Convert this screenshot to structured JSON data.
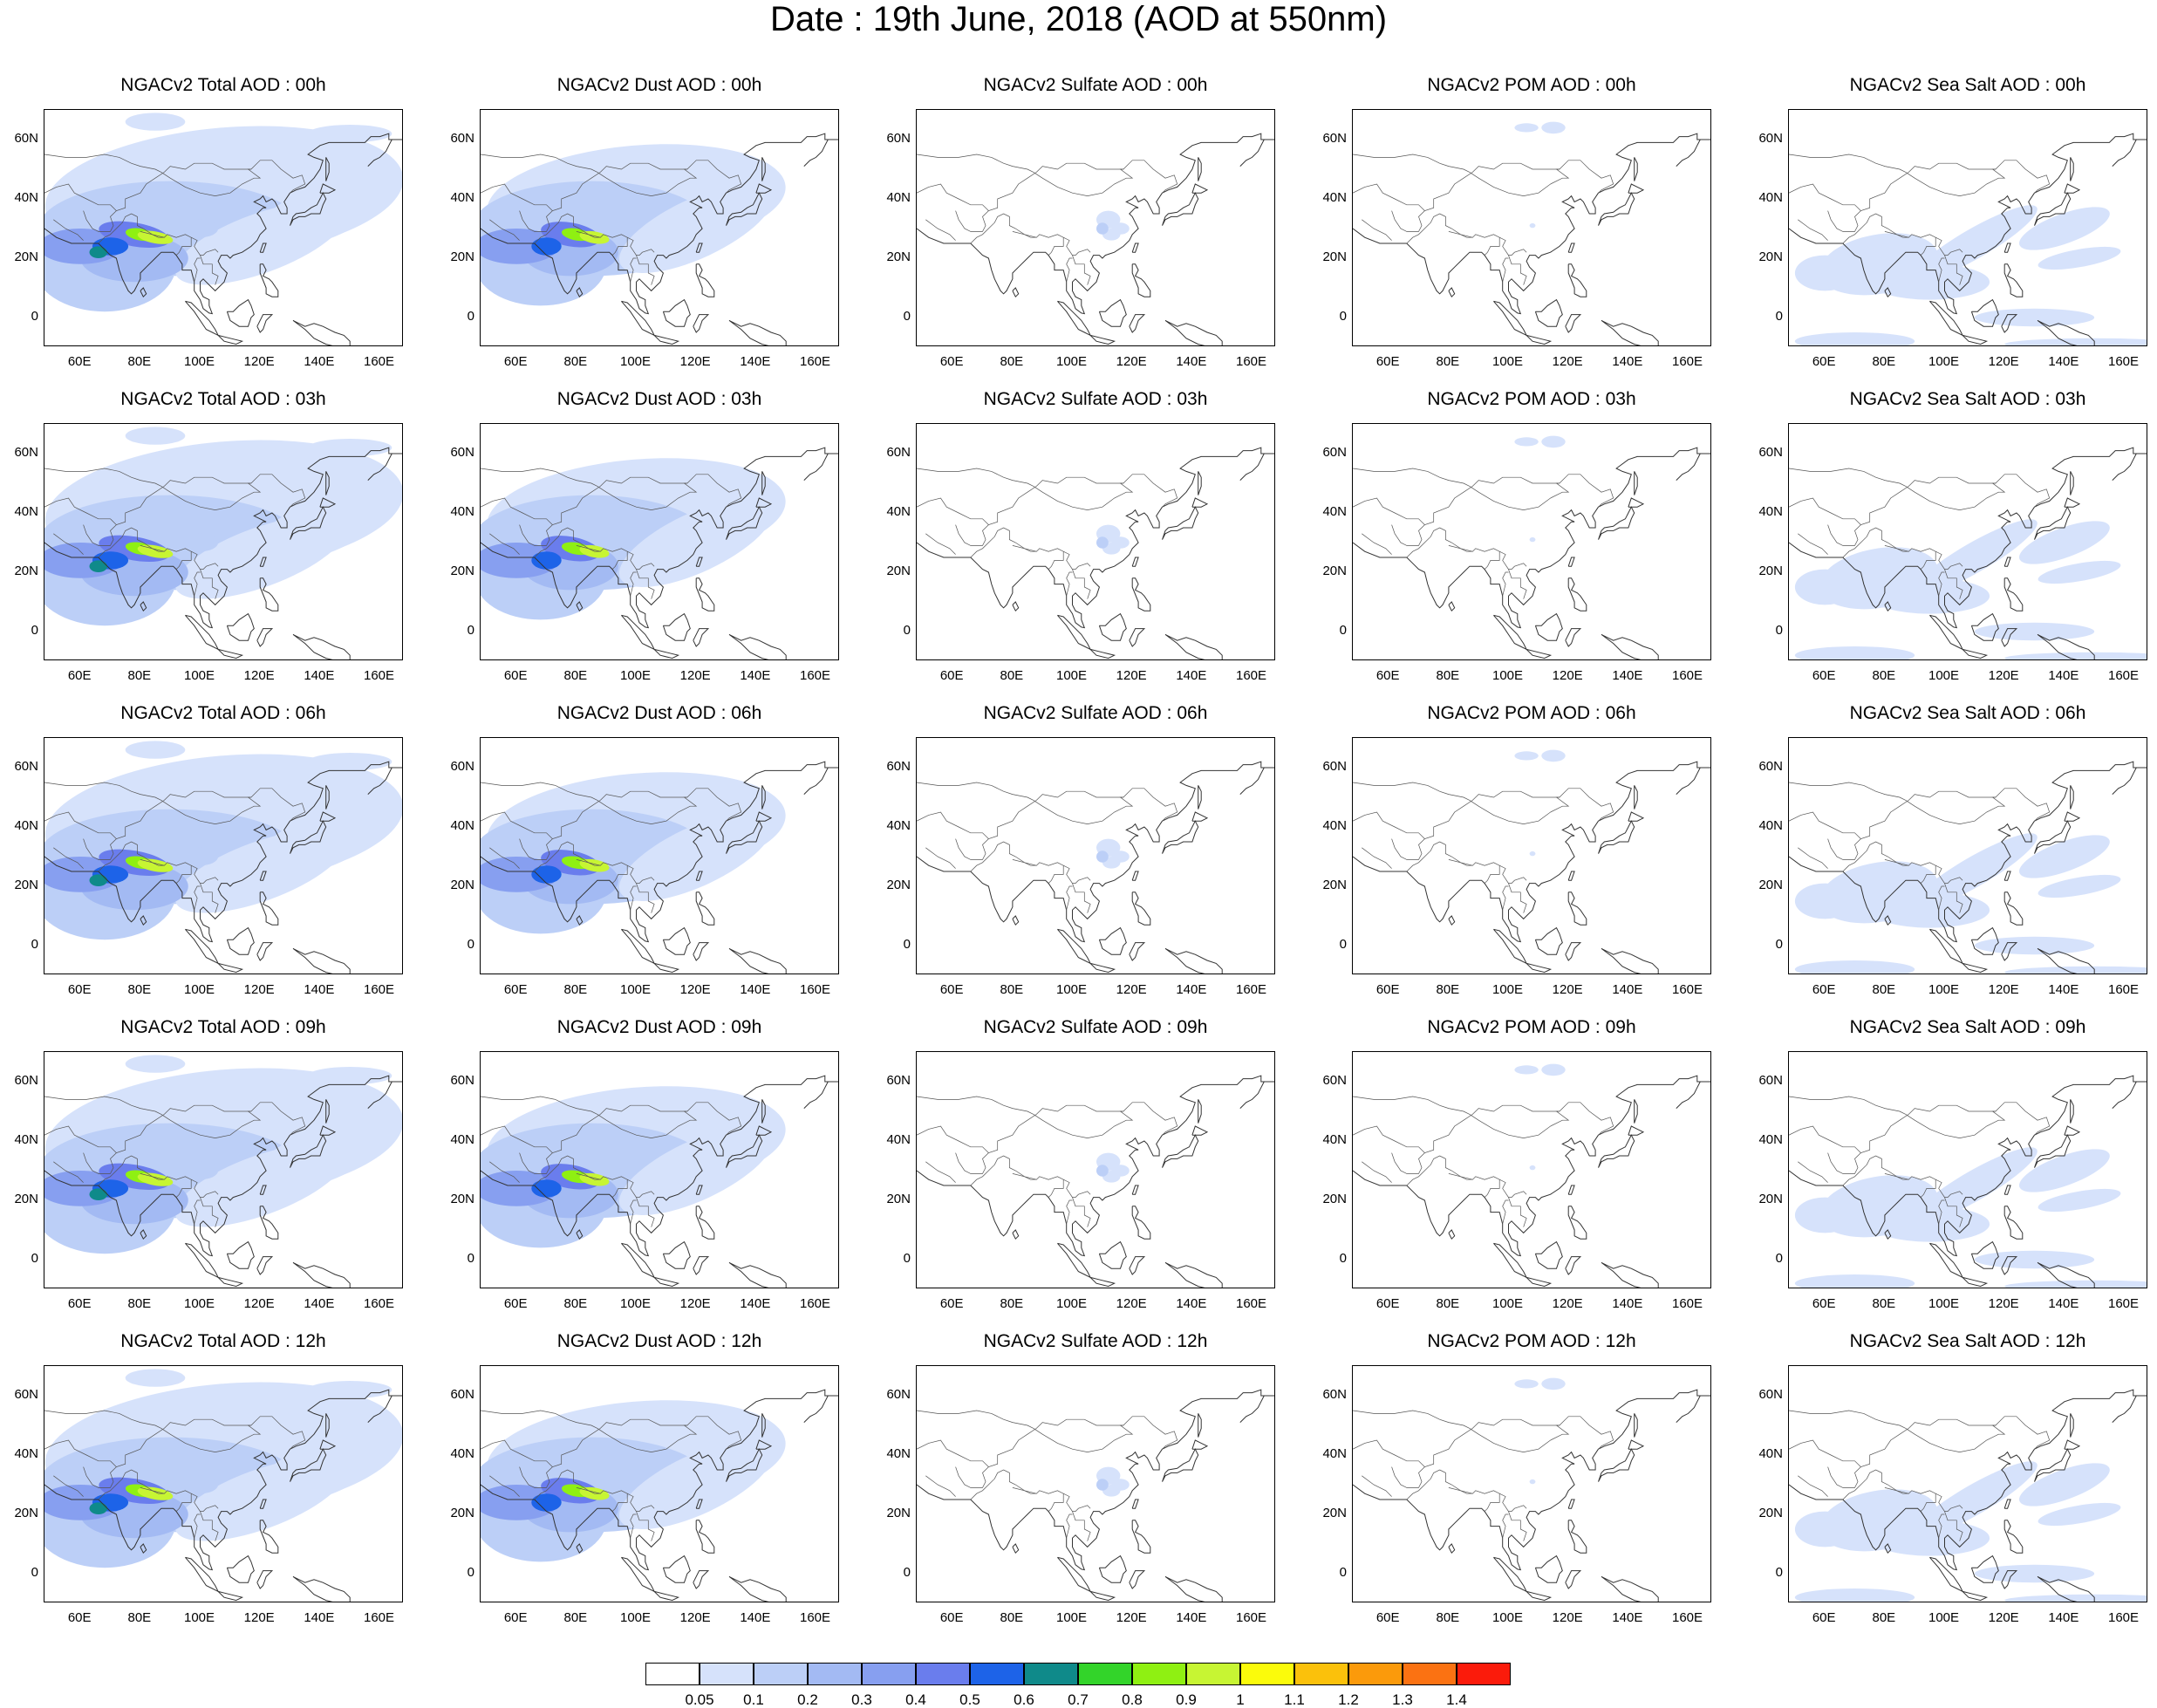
{
  "title": "Date : 19th June, 2018 (AOD at 550nm)",
  "map": {
    "lat_ticks": [
      "60N",
      "40N",
      "20N",
      "0"
    ],
    "lon_ticks": [
      "60E",
      "80E",
      "100E",
      "120E",
      "140E",
      "160E"
    ],
    "lon_range": [
      48,
      168
    ],
    "lat_range": [
      -10,
      70
    ]
  },
  "panels": [
    [
      {
        "title": "NGACv2 Total AOD : 00h",
        "field": "total"
      },
      {
        "title": "NGACv2 Dust AOD : 00h",
        "field": "dust"
      },
      {
        "title": "NGACv2 Sulfate AOD : 00h",
        "field": "sulfate"
      },
      {
        "title": "NGACv2 POM AOD : 00h",
        "field": "pom"
      },
      {
        "title": "NGACv2 Sea Salt AOD : 00h",
        "field": "seasalt"
      }
    ],
    [
      {
        "title": "NGACv2 Total AOD : 03h",
        "field": "total"
      },
      {
        "title": "NGACv2 Dust AOD : 03h",
        "field": "dust"
      },
      {
        "title": "NGACv2 Sulfate AOD : 03h",
        "field": "sulfate"
      },
      {
        "title": "NGACv2 POM AOD : 03h",
        "field": "pom"
      },
      {
        "title": "NGACv2 Sea Salt AOD : 03h",
        "field": "seasalt"
      }
    ],
    [
      {
        "title": "NGACv2 Total AOD : 06h",
        "field": "total"
      },
      {
        "title": "NGACv2 Dust AOD : 06h",
        "field": "dust"
      },
      {
        "title": "NGACv2 Sulfate AOD : 06h",
        "field": "sulfate"
      },
      {
        "title": "NGACv2 POM AOD : 06h",
        "field": "pom"
      },
      {
        "title": "NGACv2 Sea Salt AOD : 06h",
        "field": "seasalt"
      }
    ],
    [
      {
        "title": "NGACv2 Total AOD : 09h",
        "field": "total"
      },
      {
        "title": "NGACv2 Dust AOD : 09h",
        "field": "dust"
      },
      {
        "title": "NGACv2 Sulfate AOD : 09h",
        "field": "sulfate"
      },
      {
        "title": "NGACv2 POM AOD : 09h",
        "field": "pom"
      },
      {
        "title": "NGACv2 Sea Salt  AOD : 09h",
        "field": "seasalt"
      }
    ],
    [
      {
        "title": "NGACv2 Total AOD  : 12h",
        "field": "total"
      },
      {
        "title": "NGACv2 Dust AOD : 12h",
        "field": "dust"
      },
      {
        "title": "NGACv2 Sulfate AOD : 12h",
        "field": "sulfate"
      },
      {
        "title": "NGACv2 POM  AOD : 12h",
        "field": "pom"
      },
      {
        "title": "NGACv2 Sea Salt  AOD : 12h",
        "field": "seasalt"
      }
    ]
  ],
  "colorbar": {
    "labels": [
      "0.05",
      "0.1",
      "0.2",
      "0.3",
      "0.4",
      "0.5",
      "0.6",
      "0.7",
      "0.8",
      "0.9",
      "1",
      "1.1",
      "1.2",
      "1.3",
      "1.4"
    ],
    "colors": [
      "#ffffff",
      "#d6e2fb",
      "#bccff7",
      "#a3baf3",
      "#879ff0",
      "#6a7ded",
      "#1d63e8",
      "#0f8a8a",
      "#33d42a",
      "#8ff012",
      "#c7f533",
      "#fbfb0b",
      "#fbc10b",
      "#fb9a0b",
      "#fb7212",
      "#fb1b0b"
    ]
  }
}
